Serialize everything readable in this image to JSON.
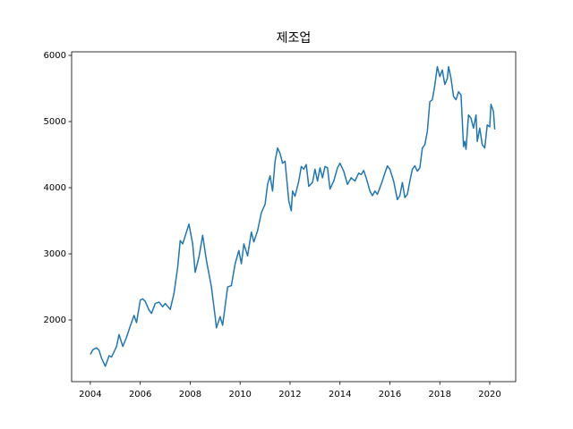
{
  "chart_data": {
    "type": "line",
    "title": "제조업",
    "color": "#1f77b4",
    "x": [
      2004.0,
      2004.1,
      2004.25,
      2004.35,
      2004.45,
      2004.6,
      2004.75,
      2004.85,
      2004.95,
      2005.05,
      2005.15,
      2005.3,
      2005.45,
      2005.6,
      2005.75,
      2005.85,
      2006.0,
      2006.1,
      2006.2,
      2006.35,
      2006.45,
      2006.6,
      2006.75,
      2006.9,
      2007.0,
      2007.2,
      2007.35,
      2007.5,
      2007.6,
      2007.7,
      2007.95,
      2008.1,
      2008.2,
      2008.35,
      2008.5,
      2008.65,
      2008.85,
      2009.0,
      2009.05,
      2009.2,
      2009.3,
      2009.5,
      2009.65,
      2009.8,
      2009.95,
      2010.05,
      2010.15,
      2010.3,
      2010.45,
      2010.55,
      2010.7,
      2010.85,
      2011.0,
      2011.1,
      2011.2,
      2011.3,
      2011.4,
      2011.5,
      2011.6,
      2011.7,
      2011.8,
      2011.95,
      2012.05,
      2012.1,
      2012.2,
      2012.35,
      2012.45,
      2012.55,
      2012.65,
      2012.75,
      2012.9,
      2013.0,
      2013.1,
      2013.2,
      2013.3,
      2013.4,
      2013.5,
      2013.6,
      2013.75,
      2013.9,
      2014.0,
      2014.15,
      2014.3,
      2014.45,
      2014.6,
      2014.75,
      2014.85,
      2014.95,
      2015.05,
      2015.2,
      2015.3,
      2015.4,
      2015.5,
      2015.65,
      2015.8,
      2015.9,
      2016.0,
      2016.15,
      2016.3,
      2016.4,
      2016.5,
      2016.6,
      2016.7,
      2016.8,
      2016.9,
      2017.0,
      2017.1,
      2017.2,
      2017.3,
      2017.4,
      2017.5,
      2017.6,
      2017.7,
      2017.8,
      2017.9,
      2018.0,
      2018.1,
      2018.2,
      2018.3,
      2018.35,
      2018.45,
      2018.55,
      2018.65,
      2018.75,
      2018.85,
      2018.95,
      2019.0,
      2019.05,
      2019.15,
      2019.25,
      2019.35,
      2019.45,
      2019.5,
      2019.6,
      2019.7,
      2019.8,
      2019.9,
      2020.0,
      2020.05,
      2020.15,
      2020.2
    ],
    "values": [
      1480,
      1550,
      1580,
      1540,
      1420,
      1300,
      1460,
      1440,
      1520,
      1600,
      1780,
      1600,
      1740,
      1910,
      2070,
      1960,
      2300,
      2320,
      2280,
      2150,
      2100,
      2250,
      2270,
      2200,
      2250,
      2160,
      2400,
      2800,
      3200,
      3150,
      3450,
      3150,
      2720,
      2950,
      3280,
      2900,
      2500,
      2050,
      1880,
      2050,
      1920,
      2500,
      2520,
      2850,
      3050,
      2850,
      3150,
      2970,
      3330,
      3180,
      3350,
      3620,
      3750,
      4050,
      4180,
      3950,
      4400,
      4600,
      4520,
      4370,
      4400,
      3800,
      3650,
      3950,
      3870,
      4100,
      4320,
      4280,
      4350,
      4020,
      4080,
      4280,
      4100,
      4300,
      4150,
      4320,
      4300,
      3980,
      4100,
      4300,
      4370,
      4250,
      4050,
      4150,
      4100,
      4220,
      4200,
      4260,
      4150,
      3950,
      3880,
      3950,
      3900,
      4050,
      4220,
      4330,
      4280,
      4100,
      3820,
      3880,
      4080,
      3850,
      3900,
      4100,
      4280,
      4330,
      4250,
      4300,
      4600,
      4650,
      4850,
      5300,
      5330,
      5550,
      5830,
      5680,
      5780,
      5560,
      5650,
      5830,
      5650,
      5380,
      5330,
      5450,
      5400,
      4620,
      4700,
      4580,
      5100,
      5050,
      4900,
      5100,
      4700,
      4900,
      4650,
      4600,
      4950,
      4920,
      5260,
      5150,
      4880
    ],
    "xlim": [
      2003.25,
      2021.04
    ],
    "ylim": [
      1068,
      6054
    ],
    "xticks": [
      2004,
      2006,
      2008,
      2010,
      2012,
      2014,
      2016,
      2018,
      2020
    ],
    "yticks": [
      2000,
      3000,
      4000,
      5000,
      6000
    ]
  }
}
